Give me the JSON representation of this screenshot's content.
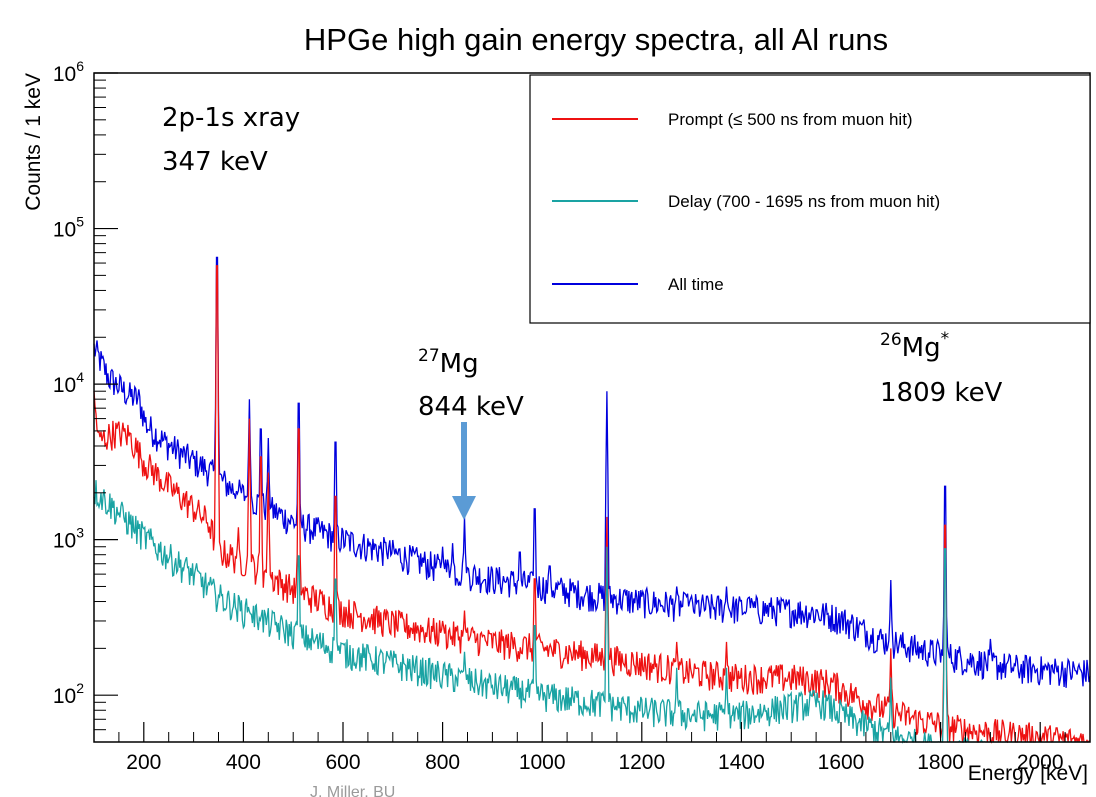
{
  "chart_data": {
    "type": "line",
    "title": "HPGe high gain energy spectra, all Al runs",
    "xlabel": "Energy [keV]",
    "ylabel": "Counts / 1 keV",
    "xlim": [
      100,
      2100
    ],
    "ylim": [
      50,
      1000000
    ],
    "yscale": "log",
    "grid": false,
    "legend_position": "top-right",
    "x_ticks": [
      200,
      400,
      600,
      800,
      1000,
      1200,
      1400,
      1600,
      1800,
      2000
    ],
    "y_ticks": [
      {
        "base": "10",
        "exp": "2",
        "value": 100
      },
      {
        "base": "10",
        "exp": "3",
        "value": 1000
      },
      {
        "base": "10",
        "exp": "4",
        "value": 10000
      },
      {
        "base": "10",
        "exp": "5",
        "value": 100000
      },
      {
        "base": "10",
        "exp": "6",
        "value": 1000000
      }
    ],
    "series": [
      {
        "name": "All time",
        "color": "#0000dd",
        "baseline": [
          [
            100,
            17000
          ],
          [
            130,
            11000
          ],
          [
            170,
            8500
          ],
          [
            190,
            8000
          ],
          [
            205,
            5500
          ],
          [
            240,
            4300
          ],
          [
            280,
            3500
          ],
          [
            330,
            2800
          ],
          [
            380,
            2100
          ],
          [
            450,
            1600
          ],
          [
            500,
            1300
          ],
          [
            600,
            1000
          ],
          [
            700,
            820
          ],
          [
            800,
            650
          ],
          [
            900,
            560
          ],
          [
            1000,
            500
          ],
          [
            1100,
            440
          ],
          [
            1200,
            400
          ],
          [
            1300,
            370
          ],
          [
            1400,
            360
          ],
          [
            1500,
            350
          ],
          [
            1550,
            340
          ],
          [
            1600,
            310
          ],
          [
            1680,
            230
          ],
          [
            1750,
            200
          ],
          [
            1850,
            170
          ],
          [
            1950,
            150
          ],
          [
            2100,
            140
          ]
        ],
        "peaks": [
          [
            347,
            90000
          ],
          [
            390,
            1800
          ],
          [
            412,
            8000
          ],
          [
            435,
            6500
          ],
          [
            450,
            4500
          ],
          [
            511,
            10000
          ],
          [
            585,
            5500
          ],
          [
            690,
            750
          ],
          [
            800,
            900
          ],
          [
            820,
            950
          ],
          [
            844,
            1400
          ],
          [
            955,
            950
          ],
          [
            985,
            2000
          ],
          [
            1015,
            750
          ],
          [
            1130,
            9000
          ],
          [
            1270,
            500
          ],
          [
            1290,
            430
          ],
          [
            1370,
            500
          ],
          [
            1415,
            450
          ],
          [
            1700,
            550
          ],
          [
            1809,
            3000
          ],
          [
            1900,
            230
          ]
        ]
      },
      {
        "name": "Prompt (≤ 500 ns from muon hit)",
        "color": "#ee1111",
        "baseline": [
          [
            100,
            8000
          ],
          [
            110,
            4300
          ],
          [
            140,
            4900
          ],
          [
            170,
            4700
          ],
          [
            200,
            3200
          ],
          [
            250,
            2200
          ],
          [
            300,
            1600
          ],
          [
            330,
            1300
          ],
          [
            350,
            850
          ],
          [
            400,
            730
          ],
          [
            500,
            480
          ],
          [
            600,
            350
          ],
          [
            700,
            290
          ],
          [
            800,
            250
          ],
          [
            900,
            220
          ],
          [
            1000,
            200
          ],
          [
            1100,
            180
          ],
          [
            1200,
            160
          ],
          [
            1300,
            140
          ],
          [
            1400,
            130
          ],
          [
            1500,
            130
          ],
          [
            1580,
            120
          ],
          [
            1650,
            90
          ],
          [
            1750,
            70
          ],
          [
            1850,
            60
          ],
          [
            2100,
            50
          ]
        ],
        "peaks": [
          [
            347,
            80000
          ],
          [
            390,
            1200
          ],
          [
            412,
            6000
          ],
          [
            435,
            4500
          ],
          [
            450,
            2700
          ],
          [
            511,
            7000
          ],
          [
            585,
            2500
          ],
          [
            800,
            300
          ],
          [
            844,
            350
          ],
          [
            985,
            700
          ],
          [
            1130,
            1400
          ],
          [
            1270,
            220
          ],
          [
            1370,
            220
          ],
          [
            1700,
            200
          ],
          [
            1809,
            1700
          ]
        ]
      },
      {
        "name": "Delay (700 - 1695 ns from muon hit)",
        "color": "#1aa3a3",
        "baseline": [
          [
            100,
            2100
          ],
          [
            150,
            1500
          ],
          [
            200,
            1050
          ],
          [
            250,
            780
          ],
          [
            300,
            600
          ],
          [
            350,
            430
          ],
          [
            400,
            350
          ],
          [
            500,
            250
          ],
          [
            600,
            190
          ],
          [
            700,
            160
          ],
          [
            800,
            135
          ],
          [
            900,
            115
          ],
          [
            1000,
            100
          ],
          [
            1100,
            90
          ],
          [
            1200,
            80
          ],
          [
            1300,
            75
          ],
          [
            1400,
            75
          ],
          [
            1500,
            85
          ],
          [
            1560,
            90
          ],
          [
            1620,
            70
          ],
          [
            1700,
            55
          ],
          [
            1800,
            45
          ],
          [
            2100,
            35
          ]
        ],
        "peaks": [
          [
            347,
            300
          ],
          [
            412,
            330
          ],
          [
            435,
            300
          ],
          [
            511,
            1000
          ],
          [
            585,
            700
          ],
          [
            690,
            180
          ],
          [
            844,
            190
          ],
          [
            985,
            350
          ],
          [
            1130,
            900
          ],
          [
            1270,
            150
          ],
          [
            1370,
            150
          ],
          [
            1700,
            130
          ],
          [
            1809,
            1200
          ]
        ]
      }
    ],
    "annotations": [
      {
        "line1": "2p-1s xray",
        "line2": "347 keV"
      },
      {
        "sup": "27",
        "name": "Mg",
        "line2": "844 keV",
        "arrow_x": 844
      },
      {
        "sup": "26",
        "name": "Mg",
        "name_sup": "*",
        "line2": "1809 keV"
      }
    ],
    "credit": "J. Miller, BU"
  }
}
